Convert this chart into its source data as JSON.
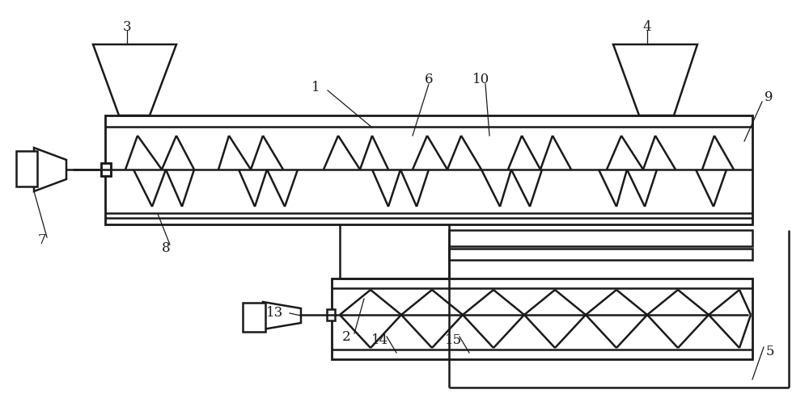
{
  "bg_color": "#ffffff",
  "line_color": "#1a1a1a",
  "lw": 1.8,
  "thin_lw": 1.2,
  "label_fs": 12
}
